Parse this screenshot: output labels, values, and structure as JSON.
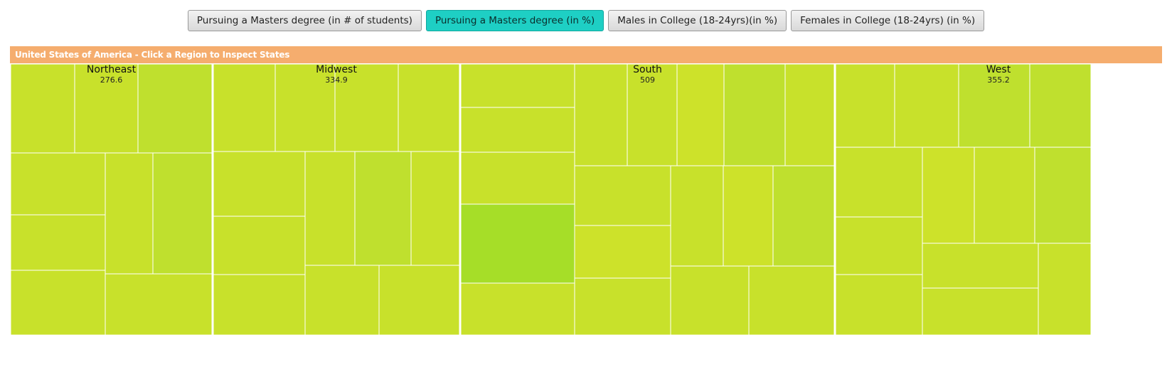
{
  "toolbar": {
    "buttons": [
      {
        "label": "Pursuing a Masters degree (in # of students)",
        "active": false
      },
      {
        "label": "Pursuing a Masters degree (in %)",
        "active": true
      },
      {
        "label": "Males in College (18-24yrs)(in %)",
        "active": false
      },
      {
        "label": "Females in College (18-24yrs) (in %)",
        "active": false
      }
    ],
    "active_color": "#1ecfc4"
  },
  "banner": {
    "text": "United States of America - Click a Region to Inspect States",
    "color": "#f5ad6e"
  },
  "chart_data": {
    "type": "treemap",
    "title": "",
    "colors": {
      "base": "#c8e12b",
      "light": "#cde22a",
      "dark": "#bfe02e",
      "highlight": "#a6de28"
    },
    "regions": [
      {
        "name": "Northeast",
        "value": "276.6"
      },
      {
        "name": "Midwest",
        "value": "334.9"
      },
      {
        "name": "South",
        "value": "509"
      },
      {
        "name": "West",
        "value": "355.2"
      }
    ]
  }
}
